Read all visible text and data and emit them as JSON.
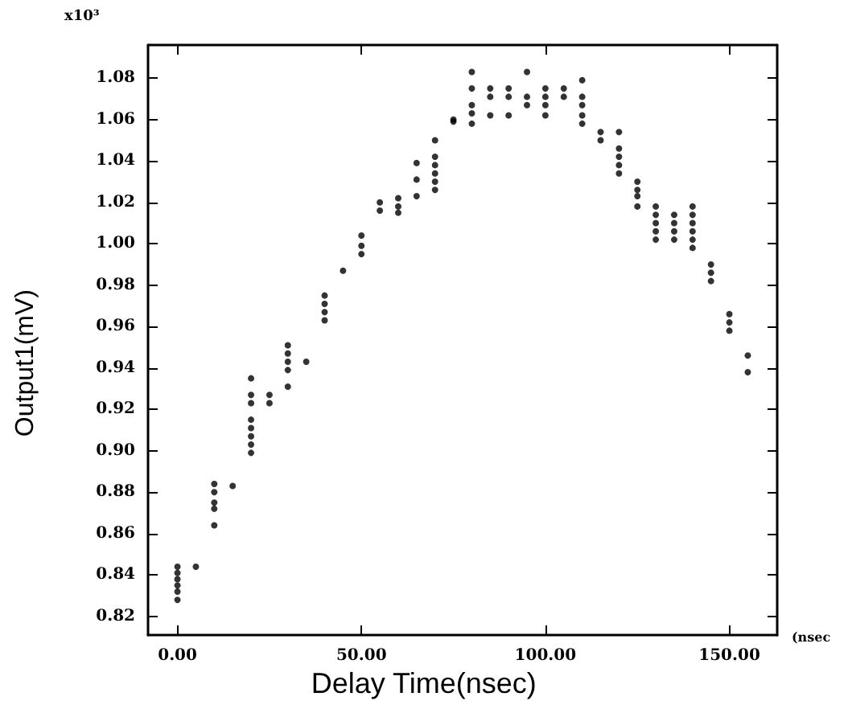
{
  "chart_data": {
    "type": "scatter",
    "xlabel": "Delay Time(nsec)",
    "ylabel": "Output1(mV)",
    "annotations": [
      "x10³",
      "(nsec"
    ],
    "marker": "circle",
    "grid": false,
    "xlim": [
      -8,
      163
    ],
    "ylim": [
      0.811,
      1.096
    ],
    "xticks": [
      {
        "value": 0,
        "label": "0.00"
      },
      {
        "value": 50,
        "label": "50.00"
      },
      {
        "value": 100,
        "label": "100.00"
      },
      {
        "value": 150,
        "label": "150.00"
      }
    ],
    "yticks": [
      {
        "value": 0.82,
        "label": "0.82"
      },
      {
        "value": 0.84,
        "label": "0.84"
      },
      {
        "value": 0.86,
        "label": "0.86"
      },
      {
        "value": 0.88,
        "label": "0.88"
      },
      {
        "value": 0.9,
        "label": "0.90"
      },
      {
        "value": 0.92,
        "label": "0.92"
      },
      {
        "value": 0.94,
        "label": "0.94"
      },
      {
        "value": 0.96,
        "label": "0.96"
      },
      {
        "value": 0.98,
        "label": "0.98"
      },
      {
        "value": 1.0,
        "label": "1.00"
      },
      {
        "value": 1.02,
        "label": "1.02"
      },
      {
        "value": 1.04,
        "label": "1.04"
      },
      {
        "value": 1.06,
        "label": "1.06"
      },
      {
        "value": 1.08,
        "label": "1.08"
      }
    ],
    "series": [
      {
        "color": "#000000",
        "x": [
          0,
          0,
          0,
          0,
          0,
          0,
          5,
          10,
          10,
          10,
          10,
          10,
          15,
          20,
          20,
          20,
          20,
          20,
          20,
          20,
          20,
          25,
          25,
          30,
          30,
          30,
          30,
          30,
          35,
          40,
          40,
          40,
          40,
          45,
          50,
          50,
          50,
          55,
          55,
          60,
          60,
          60,
          65,
          65,
          65,
          70,
          70,
          70,
          70,
          70,
          70,
          75,
          75,
          80,
          80,
          80,
          80,
          80,
          85,
          85,
          85,
          90,
          90,
          90,
          95,
          95,
          95,
          100,
          100,
          100,
          100,
          105,
          105,
          110,
          110,
          110,
          110,
          110,
          115,
          115,
          120,
          120,
          120,
          120,
          120,
          125,
          125,
          125,
          125,
          130,
          130,
          130,
          130,
          130,
          135,
          135,
          135,
          135,
          140,
          140,
          140,
          140,
          140,
          140,
          145,
          145,
          145,
          150,
          150,
          150,
          155,
          155
        ],
        "values": [
          0.844,
          0.841,
          0.838,
          0.835,
          0.832,
          0.828,
          0.844,
          0.884,
          0.88,
          0.875,
          0.872,
          0.864,
          0.883,
          0.935,
          0.927,
          0.923,
          0.915,
          0.911,
          0.907,
          0.903,
          0.899,
          0.927,
          0.923,
          0.951,
          0.947,
          0.943,
          0.939,
          0.931,
          0.943,
          0.975,
          0.971,
          0.967,
          0.963,
          0.987,
          1.004,
          0.999,
          0.995,
          1.02,
          1.016,
          1.022,
          1.018,
          1.015,
          1.039,
          1.031,
          1.023,
          1.05,
          1.042,
          1.038,
          1.034,
          1.03,
          1.026,
          1.06,
          1.059,
          1.083,
          1.075,
          1.067,
          1.063,
          1.058,
          1.075,
          1.071,
          1.062,
          1.075,
          1.071,
          1.062,
          1.083,
          1.071,
          1.067,
          1.075,
          1.071,
          1.067,
          1.062,
          1.075,
          1.071,
          1.079,
          1.071,
          1.067,
          1.062,
          1.058,
          1.054,
          1.05,
          1.054,
          1.046,
          1.042,
          1.038,
          1.034,
          1.03,
          1.026,
          1.023,
          1.018,
          1.018,
          1.014,
          1.01,
          1.006,
          1.002,
          1.014,
          1.01,
          1.006,
          1.002,
          1.018,
          1.014,
          1.01,
          1.006,
          1.002,
          0.998,
          0.99,
          0.986,
          0.982,
          0.966,
          0.962,
          0.958,
          0.946,
          0.938
        ]
      }
    ]
  }
}
